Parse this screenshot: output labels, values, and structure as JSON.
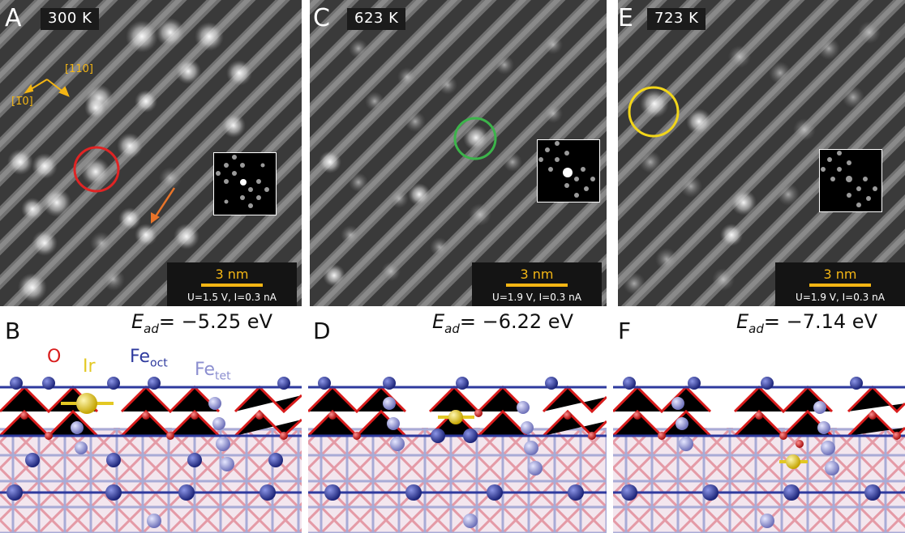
{
  "panels": [
    {
      "label": "A",
      "temp": "300 K",
      "scale": "3 nm",
      "params_u": "U=1.5 V, ",
      "params_i": "I=0.3 nA"
    },
    {
      "label": "C",
      "temp": "623 K",
      "scale": "3 nm",
      "params_u": "U=1.9 V, ",
      "params_i": "I=0.3 nA"
    },
    {
      "label": "E",
      "temp": "723 K",
      "scale": "3 nm",
      "params_u": "U=1.9 V, ",
      "params_i": "I=0.3 nA"
    }
  ],
  "directions": {
    "d1": "[110]",
    "d2": "[1̅0]"
  },
  "lower": [
    {
      "label": "B",
      "energy_value": "= −5.25 eV"
    },
    {
      "label": "D",
      "energy_value": "= −6.22 eV"
    },
    {
      "label": "F",
      "energy_value": "= −7.14 eV"
    }
  ],
  "energy_symbol": "E",
  "energy_sub": "ad",
  "atoms": {
    "o": "O",
    "ir": "Ir",
    "fe": "Fe",
    "oct": "oct",
    "tet": "tet"
  },
  "colors": {
    "scale": "#f4b614",
    "circle_a": "#e02424",
    "circle_c": "#3cb44a",
    "circle_e": "#f2d61a",
    "arrow": "#e8742a",
    "oxygen": "#d81c1c",
    "fe_oct": "#2e3a9e",
    "fe_tet": "#8c8fd0",
    "iridium": "#e3c823"
  }
}
